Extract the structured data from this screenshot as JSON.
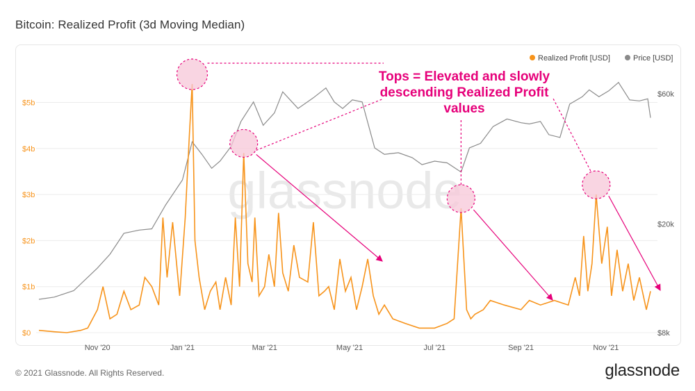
{
  "title": "Bitcoin: Realized Profit (3d Moving Median)",
  "footer": {
    "copyright": "© 2021 Glassnode. All Rights Reserved.",
    "logo": "glassnode"
  },
  "watermark": "glassnode",
  "colors": {
    "realized_profit": "#f7931a",
    "price": "#8a8a8a",
    "annotation": "#e6007a",
    "highlight_fill": "#f7c7d8"
  },
  "annotation_text": [
    "Tops = Elevated and slowly",
    "descending Realized Profit",
    "values"
  ],
  "chart_data": {
    "type": "line",
    "title": "Bitcoin: Realized Profit (3d Moving Median)",
    "legend": [
      {
        "name": "Realized Profit [USD]",
        "color": "#f7931a"
      },
      {
        "name": "Price [USD]",
        "color": "#8a8a8a"
      }
    ],
    "legend_position": "top-right",
    "grid": true,
    "x_ticks": [
      "Nov '20",
      "Jan '21",
      "Mar '21",
      "May '21",
      "Jul '21",
      "Sep '21",
      "Nov '21"
    ],
    "y_left": {
      "ticks": [
        "$0",
        "$1b",
        "$2b",
        "$3b",
        "$4b",
        "$5b"
      ],
      "range": [
        0,
        5.3
      ],
      "unit": "b USD"
    },
    "y_right": {
      "ticks": [
        "$8k",
        "$20k",
        "$60k"
      ],
      "scale": "log",
      "range": [
        8000,
        68000
      ]
    },
    "series": [
      {
        "name": "Realized Profit [USD]",
        "axis": "left",
        "color": "#f7931a",
        "x": [
          "2020-09-20",
          "2020-10-01",
          "2020-10-10",
          "2020-10-20",
          "2020-10-25",
          "2020-11-01",
          "2020-11-05",
          "2020-11-10",
          "2020-11-15",
          "2020-11-20",
          "2020-11-25",
          "2020-12-01",
          "2020-12-05",
          "2020-12-10",
          "2020-12-15",
          "2020-12-18",
          "2020-12-21",
          "2020-12-25",
          "2020-12-30",
          "2021-01-03",
          "2021-01-06",
          "2021-01-08",
          "2021-01-10",
          "2021-01-13",
          "2021-01-17",
          "2021-01-21",
          "2021-01-25",
          "2021-01-28",
          "2021-02-01",
          "2021-02-05",
          "2021-02-08",
          "2021-02-11",
          "2021-02-14",
          "2021-02-17",
          "2021-02-20",
          "2021-02-22",
          "2021-02-25",
          "2021-03-01",
          "2021-03-04",
          "2021-03-08",
          "2021-03-11",
          "2021-03-14",
          "2021-03-18",
          "2021-03-22",
          "2021-03-26",
          "2021-04-01",
          "2021-04-05",
          "2021-04-09",
          "2021-04-13",
          "2021-04-16",
          "2021-04-20",
          "2021-04-24",
          "2021-04-28",
          "2021-05-02",
          "2021-05-06",
          "2021-05-10",
          "2021-05-14",
          "2021-05-18",
          "2021-05-22",
          "2021-05-26",
          "2021-06-01",
          "2021-06-10",
          "2021-06-20",
          "2021-07-01",
          "2021-07-10",
          "2021-07-15",
          "2021-07-20",
          "2021-07-24",
          "2021-07-27",
          "2021-07-30",
          "2021-08-05",
          "2021-08-10",
          "2021-08-20",
          "2021-09-01",
          "2021-09-07",
          "2021-09-15",
          "2021-09-25",
          "2021-10-05",
          "2021-10-10",
          "2021-10-13",
          "2021-10-16",
          "2021-10-19",
          "2021-10-22",
          "2021-10-25",
          "2021-10-29",
          "2021-11-02",
          "2021-11-05",
          "2021-11-09",
          "2021-11-13",
          "2021-11-17",
          "2021-11-21",
          "2021-11-25",
          "2021-11-30",
          "2021-12-03"
        ],
        "y": [
          0.05,
          0.02,
          0.0,
          0.05,
          0.1,
          0.5,
          1.0,
          0.3,
          0.4,
          0.9,
          0.5,
          0.6,
          1.2,
          1.0,
          0.6,
          2.5,
          1.2,
          2.4,
          0.8,
          2.5,
          4.3,
          5.4,
          2.0,
          1.2,
          0.5,
          0.9,
          1.1,
          0.5,
          1.2,
          0.6,
          2.5,
          1.0,
          3.9,
          1.5,
          1.1,
          2.5,
          0.8,
          1.0,
          1.7,
          1.0,
          2.6,
          1.3,
          0.9,
          1.9,
          1.2,
          1.1,
          2.4,
          0.8,
          0.9,
          1.0,
          0.5,
          1.6,
          0.9,
          1.2,
          0.5,
          1.0,
          1.6,
          0.8,
          0.4,
          0.6,
          0.3,
          0.2,
          0.1,
          0.1,
          0.2,
          0.3,
          2.7,
          0.5,
          0.3,
          0.4,
          0.5,
          0.7,
          0.6,
          0.5,
          0.7,
          0.6,
          0.7,
          0.6,
          1.2,
          0.8,
          2.1,
          0.9,
          1.5,
          3.0,
          1.5,
          2.3,
          0.8,
          1.8,
          0.9,
          1.5,
          0.7,
          1.2,
          0.5,
          0.9
        ]
      },
      {
        "name": "Price [USD]",
        "axis": "right",
        "color": "#8a8a8a",
        "x": [
          "2020-09-20",
          "2020-10-01",
          "2020-10-15",
          "2020-11-01",
          "2020-11-10",
          "2020-11-20",
          "2020-12-01",
          "2020-12-10",
          "2020-12-20",
          "2021-01-01",
          "2021-01-08",
          "2021-01-15",
          "2021-01-22",
          "2021-01-28",
          "2021-02-05",
          "2021-02-12",
          "2021-02-21",
          "2021-02-28",
          "2021-03-08",
          "2021-03-14",
          "2021-03-25",
          "2021-04-05",
          "2021-04-14",
          "2021-04-20",
          "2021-04-26",
          "2021-05-03",
          "2021-05-10",
          "2021-05-19",
          "2021-05-26",
          "2021-06-05",
          "2021-06-15",
          "2021-06-22",
          "2021-07-01",
          "2021-07-10",
          "2021-07-20",
          "2021-07-26",
          "2021-08-03",
          "2021-08-12",
          "2021-08-22",
          "2021-09-01",
          "2021-09-07",
          "2021-09-15",
          "2021-09-21",
          "2021-09-29",
          "2021-10-06",
          "2021-10-15",
          "2021-10-20",
          "2021-10-27",
          "2021-11-03",
          "2021-11-10",
          "2021-11-18",
          "2021-11-25",
          "2021-12-01",
          "2021-12-03"
        ],
        "y": [
          10600,
          10800,
          11400,
          13800,
          15500,
          18500,
          19000,
          19200,
          23500,
          29000,
          40000,
          36000,
          32000,
          34000,
          38500,
          47500,
          56000,
          46000,
          51000,
          61000,
          53000,
          58000,
          63000,
          56000,
          53000,
          57000,
          56000,
          38000,
          36000,
          36500,
          35000,
          33000,
          34000,
          33500,
          31000,
          38000,
          39500,
          45500,
          48500,
          47000,
          46500,
          47500,
          42500,
          41500,
          55000,
          58500,
          62000,
          58500,
          61500,
          66000,
          57000,
          56500,
          57500,
          49000
        ]
      }
    ]
  }
}
